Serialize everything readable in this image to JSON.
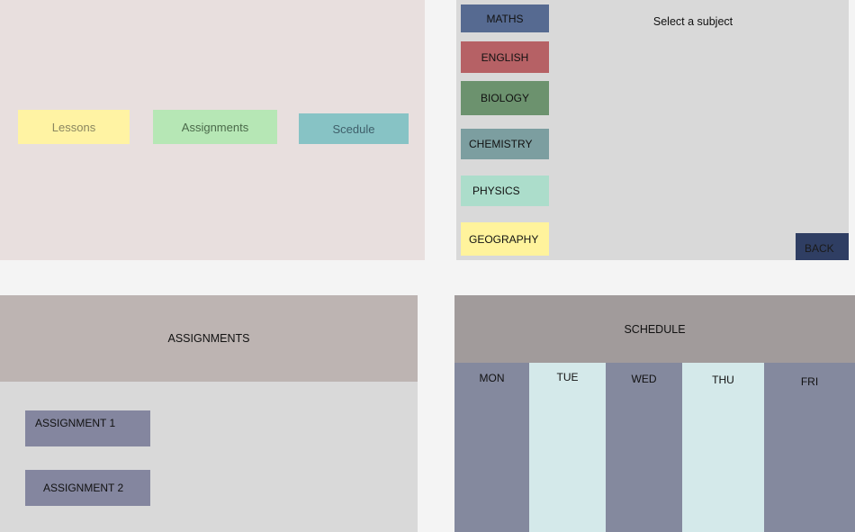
{
  "home": {
    "buttons": [
      "Lessons",
      "Assignments",
      "Scedule"
    ]
  },
  "subjects": {
    "prompt": "Select a subject",
    "items": [
      "MATHS",
      "ENGLISH",
      "BIOLOGY",
      "CHEMISTRY",
      "PHYSICS",
      "GEOGRAPHY"
    ],
    "back_label": "BACK",
    "colors": {
      "maths": "#566a91",
      "english": "#b66165",
      "biology": "#6c926e",
      "chemistry": "#7c9ea0",
      "physics": "#acddcb",
      "geography": "#fff39c"
    }
  },
  "assignments": {
    "title": "ASSIGNMENTS",
    "items": [
      "ASSIGNMENT 1",
      "ASSIGNMENT 2"
    ]
  },
  "schedule": {
    "title": "SCHEDULE",
    "days": [
      "MON",
      "TUE",
      "WED",
      "THU",
      "FRI"
    ]
  }
}
